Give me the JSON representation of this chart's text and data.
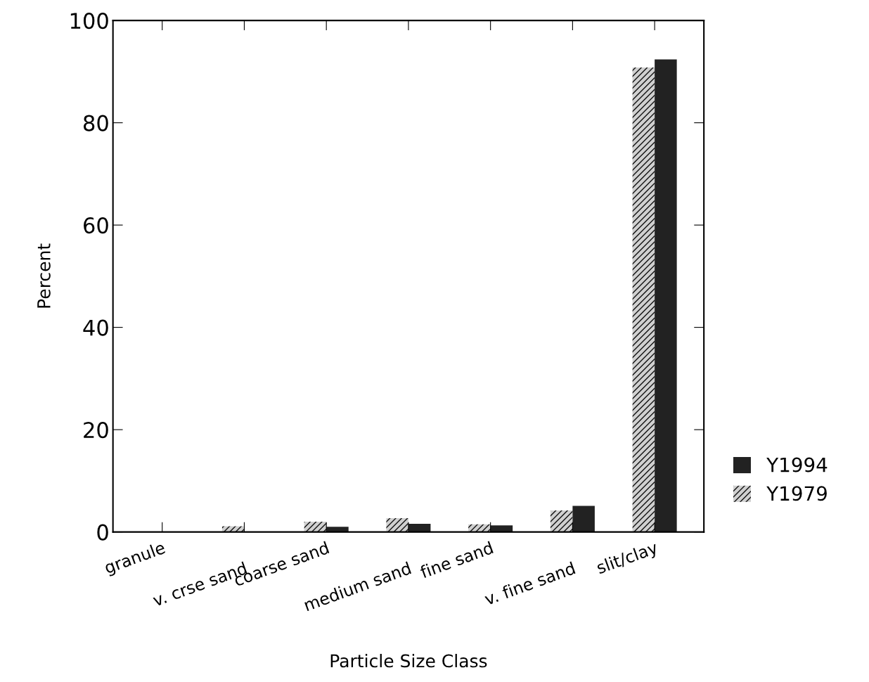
{
  "chart_data": {
    "type": "bar",
    "xlabel": "Particle Size Class",
    "ylabel": "Percent",
    "categories": [
      "granule",
      "v. crse sand",
      "coarse sand",
      "medium sand",
      "fine sand",
      "v. fine sand",
      "slit/clay"
    ],
    "series": [
      {
        "name": "Y1979",
        "color": "#d0d0d0",
        "values": [
          null,
          1.1,
          2.0,
          2.7,
          1.5,
          4.2,
          90.8
        ]
      },
      {
        "name": "Y1994",
        "color": "#222222",
        "values": [
          null,
          null,
          1.0,
          1.6,
          1.3,
          5.1,
          92.4
        ]
      }
    ],
    "ylim": [
      0,
      100
    ],
    "yticks": [
      0,
      20,
      40,
      60,
      80,
      100
    ],
    "grid": false,
    "legend": "right"
  }
}
